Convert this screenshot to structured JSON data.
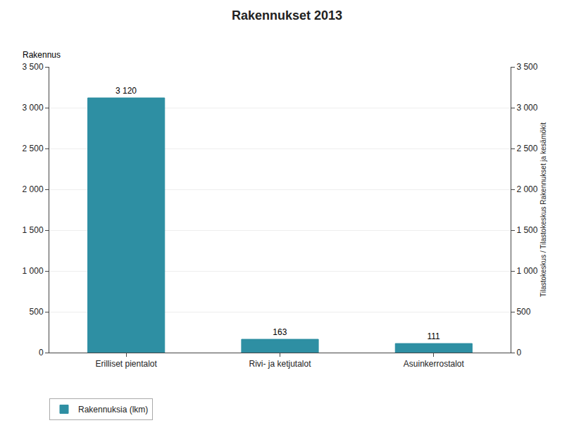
{
  "chart_data": {
    "type": "bar",
    "title": "Rakennukset 2013",
    "categories": [
      "Erilliset pientalot",
      "Rivi- ja ketjutalot",
      "Asuinkerrostalot"
    ],
    "series": [
      {
        "name": "Rakennuksia (lkm)",
        "color": "#2e8fa3",
        "values": [
          3120,
          163,
          111
        ],
        "value_labels": [
          "3 120",
          "163",
          "111"
        ]
      }
    ],
    "ylabel": "Rakennus",
    "y2label": "Tilastokeskus / Tilastokeskus Rakennukset ja kesämökit",
    "ylim": [
      0,
      3500
    ],
    "yticks": [
      0,
      500,
      {
        "value": 1000,
        "label": "1 000"
      },
      {
        "value": 1500,
        "label": "1 500"
      },
      {
        "value": 2000,
        "label": "2 000"
      },
      {
        "value": 2500,
        "label": "2 500"
      },
      {
        "value": 3000,
        "label": "3 000"
      },
      {
        "value": 3500,
        "label": "3 500"
      }
    ],
    "y2lim": [
      0,
      3500
    ],
    "y2ticks": [
      0,
      500,
      {
        "value": 1000,
        "label": "1 000"
      },
      {
        "value": 1500,
        "label": "1 500"
      },
      {
        "value": 2000,
        "label": "2 000"
      },
      {
        "value": 2500,
        "label": "2 500"
      },
      {
        "value": 3000,
        "label": "3 000"
      },
      {
        "value": 3500,
        "label": "3 500"
      }
    ],
    "grid": true,
    "legend": "lower left",
    "data_labels": true
  }
}
